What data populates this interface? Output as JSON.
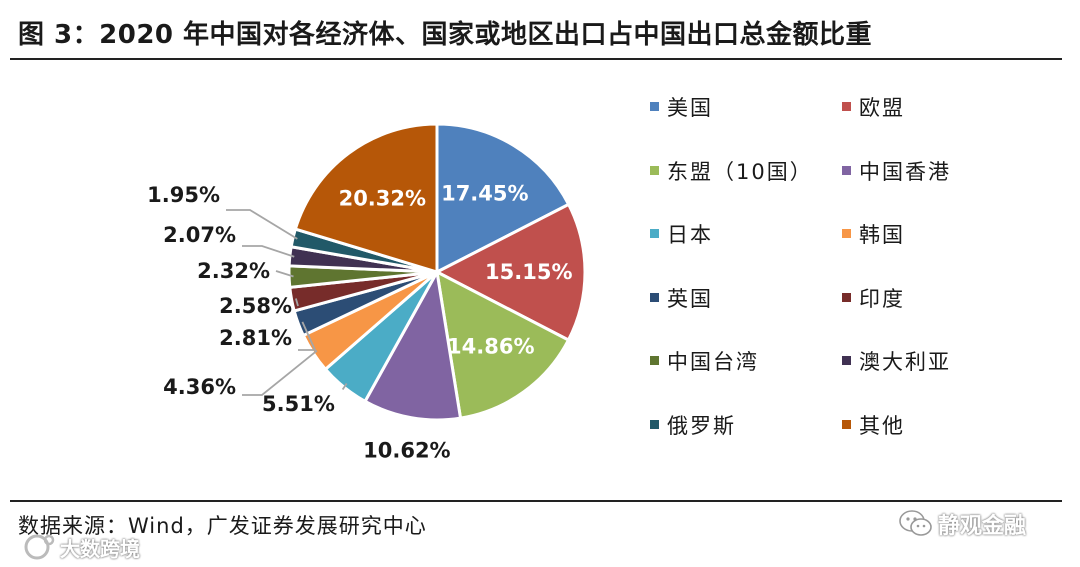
{
  "title": "图 3：2020 年中国对各经济体、国家或地区出口占中国出口总金额比重",
  "source": "数据来源：Wind，广发证券发展研究中心",
  "watermarks": {
    "right": "静观金融",
    "left": "大数跨境"
  },
  "icons": [
    "wechat-icon",
    "logo-icon"
  ],
  "chart_data": {
    "type": "pie",
    "title": "图 3：2020 年中国对各经济体、国家或地区出口占中国出口总金额比重",
    "legend_placement": "right",
    "unit": "%",
    "slices": [
      {
        "name": "美国",
        "value": 17.45,
        "label": "17.45%",
        "color": "#4f81bd"
      },
      {
        "name": "欧盟",
        "value": 15.15,
        "label": "15.15%",
        "color": "#c0504d"
      },
      {
        "name": "东盟（10国）",
        "value": 14.86,
        "label": "14.86%",
        "color": "#9bbb59"
      },
      {
        "name": "中国香港",
        "value": 10.62,
        "label": "10.62%",
        "color": "#8064a2"
      },
      {
        "name": "日本",
        "value": 5.51,
        "label": "5.51%",
        "color": "#4bacc6"
      },
      {
        "name": "韩国",
        "value": 4.36,
        "label": "4.36%",
        "color": "#f79646"
      },
      {
        "name": "英国",
        "value": 2.81,
        "label": "2.81%",
        "color": "#2c4d75"
      },
      {
        "name": "印度",
        "value": 2.58,
        "label": "2.58%",
        "color": "#772c2a"
      },
      {
        "name": "中国台湾",
        "value": 2.32,
        "label": "2.32%",
        "color": "#5f7530"
      },
      {
        "name": "澳大利亚",
        "value": 2.07,
        "label": "2.07%",
        "color": "#403152"
      },
      {
        "name": "俄罗斯",
        "value": 1.95,
        "label": "1.95%",
        "color": "#215968"
      },
      {
        "name": "其他",
        "value": 20.32,
        "label": "20.32%",
        "color": "#b65708"
      }
    ]
  }
}
